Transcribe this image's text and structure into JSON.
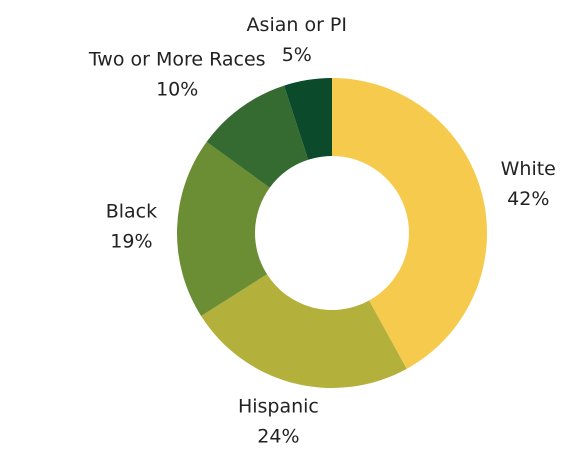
{
  "chart_data": {
    "type": "donut",
    "categories": [
      "White",
      "Hispanic",
      "Black",
      "Two or More Races",
      "Asian or PI"
    ],
    "values": [
      42,
      24,
      19,
      10,
      5
    ],
    "value_labels": [
      "42%",
      "24%",
      "19%",
      "10%",
      "5%"
    ],
    "colors": [
      "#f6ca4c",
      "#b3b13b",
      "#6b8e34",
      "#356b30",
      "#0b4a2a"
    ]
  }
}
